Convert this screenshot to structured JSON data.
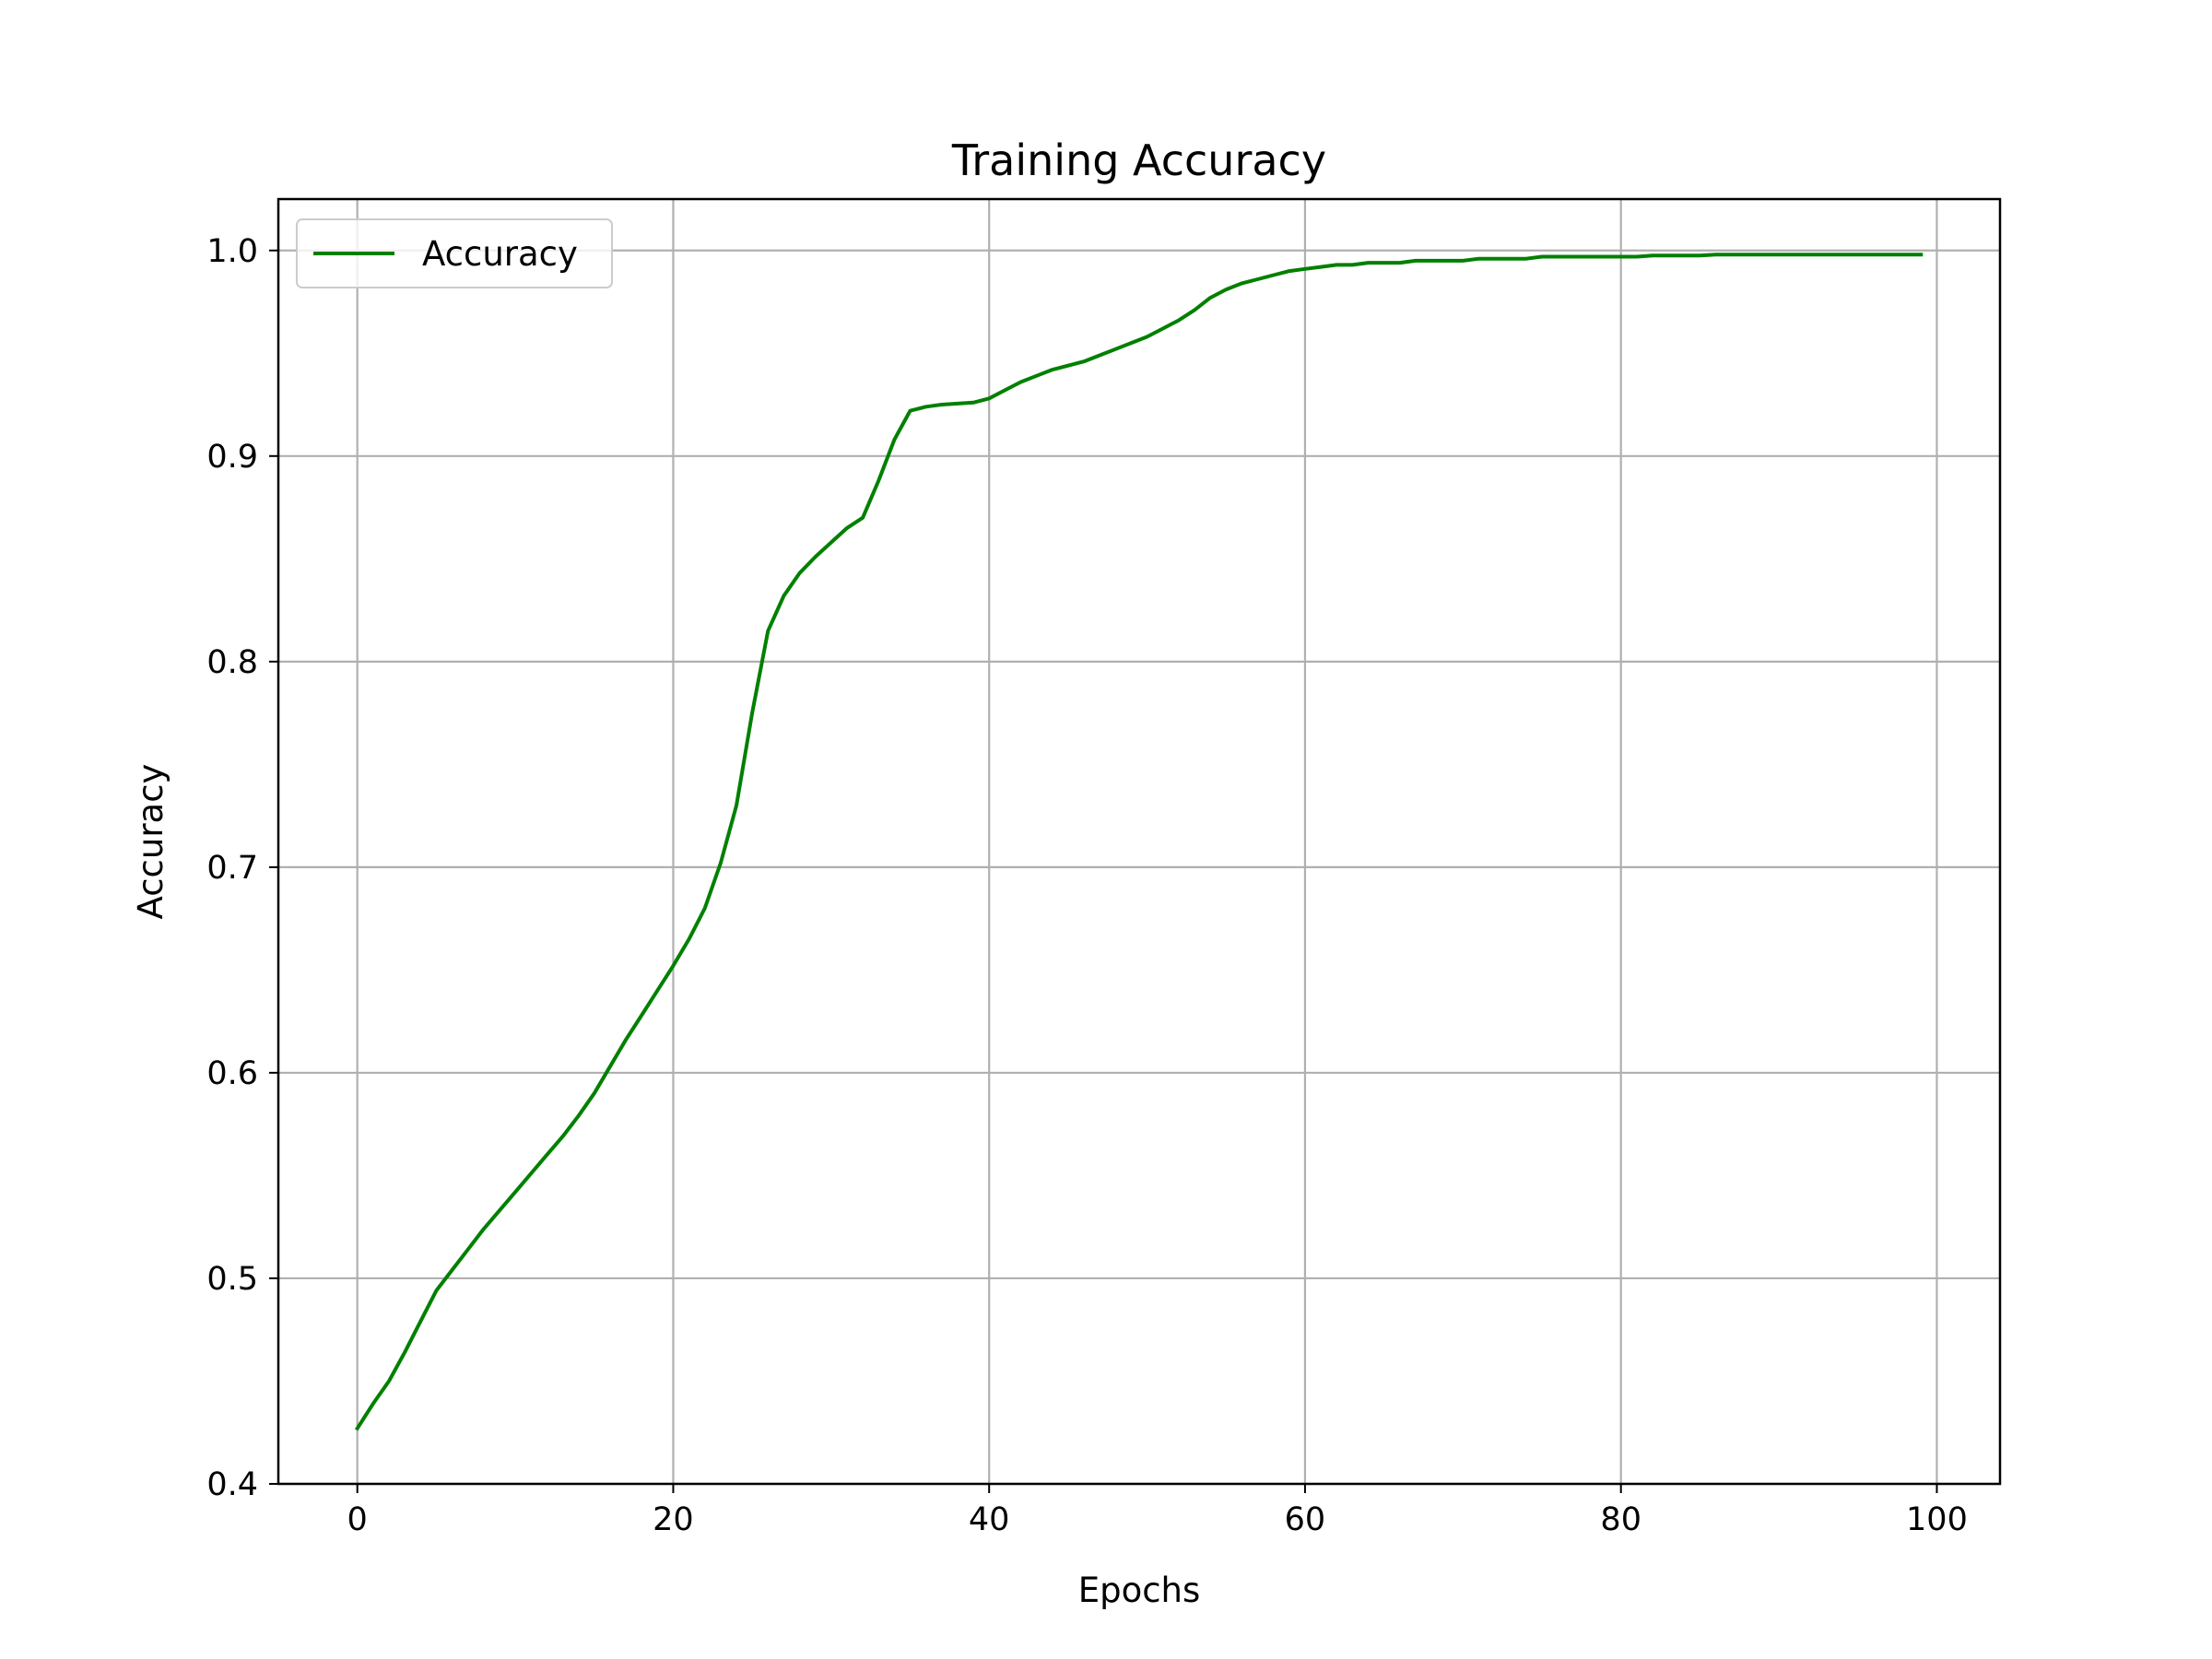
{
  "chart_data": {
    "type": "line",
    "title": "Training Accuracy",
    "xlabel": "Epochs",
    "ylabel": "Accuracy",
    "xlim": [
      -5,
      104
    ],
    "ylim": [
      0.4,
      1.025
    ],
    "xticks": [
      0,
      20,
      40,
      60,
      80,
      100
    ],
    "yticks": [
      0.4,
      0.5,
      0.6,
      0.7,
      0.8,
      0.9,
      1.0
    ],
    "xtick_labels": [
      "0",
      "20",
      "40",
      "60",
      "80",
      "100"
    ],
    "ytick_labels": [
      "0.4",
      "0.5",
      "0.6",
      "0.7",
      "0.8",
      "0.9",
      "1.0"
    ],
    "grid": true,
    "legend_position": "top-left",
    "series": [
      {
        "name": "Accuracy",
        "color": "#008000",
        "x": [
          0,
          1,
          2,
          3,
          4,
          5,
          6,
          7,
          8,
          9,
          10,
          11,
          12,
          13,
          14,
          15,
          16,
          17,
          18,
          19,
          20,
          21,
          22,
          23,
          24,
          25,
          26,
          27,
          28,
          29,
          30,
          31,
          32,
          33,
          34,
          35,
          36,
          37,
          38,
          39,
          40,
          41,
          42,
          43,
          44,
          45,
          46,
          47,
          48,
          49,
          50,
          51,
          52,
          53,
          54,
          55,
          56,
          57,
          58,
          59,
          60,
          61,
          62,
          63,
          64,
          65,
          66,
          67,
          68,
          69,
          70,
          71,
          72,
          73,
          74,
          75,
          76,
          77,
          78,
          79,
          80,
          81,
          82,
          83,
          84,
          85,
          86,
          87,
          88,
          89,
          90,
          91,
          92,
          93,
          94,
          95,
          96,
          97,
          98,
          99
        ],
        "y": [
          0.427,
          0.439,
          0.45,
          0.464,
          0.479,
          0.494,
          0.504,
          0.514,
          0.524,
          0.533,
          0.542,
          0.551,
          0.56,
          0.569,
          0.579,
          0.59,
          0.603,
          0.616,
          0.628,
          0.64,
          0.652,
          0.665,
          0.68,
          0.702,
          0.73,
          0.775,
          0.815,
          0.832,
          0.843,
          0.851,
          0.858,
          0.865,
          0.87,
          0.888,
          0.908,
          0.922,
          0.924,
          0.925,
          0.9255,
          0.926,
          0.928,
          0.932,
          0.936,
          0.939,
          0.942,
          0.944,
          0.946,
          0.949,
          0.952,
          0.955,
          0.958,
          0.962,
          0.966,
          0.971,
          0.977,
          0.981,
          0.984,
          0.986,
          0.988,
          0.99,
          0.991,
          0.992,
          0.993,
          0.993,
          0.994,
          0.994,
          0.994,
          0.995,
          0.995,
          0.995,
          0.995,
          0.996,
          0.996,
          0.996,
          0.996,
          0.997,
          0.997,
          0.997,
          0.997,
          0.997,
          0.997,
          0.997,
          0.9975,
          0.9975,
          0.9975,
          0.9975,
          0.998,
          0.998,
          0.998,
          0.998,
          0.998,
          0.998,
          0.998,
          0.998,
          0.998,
          0.998,
          0.998,
          0.998,
          0.998,
          0.998
        ]
      }
    ]
  }
}
